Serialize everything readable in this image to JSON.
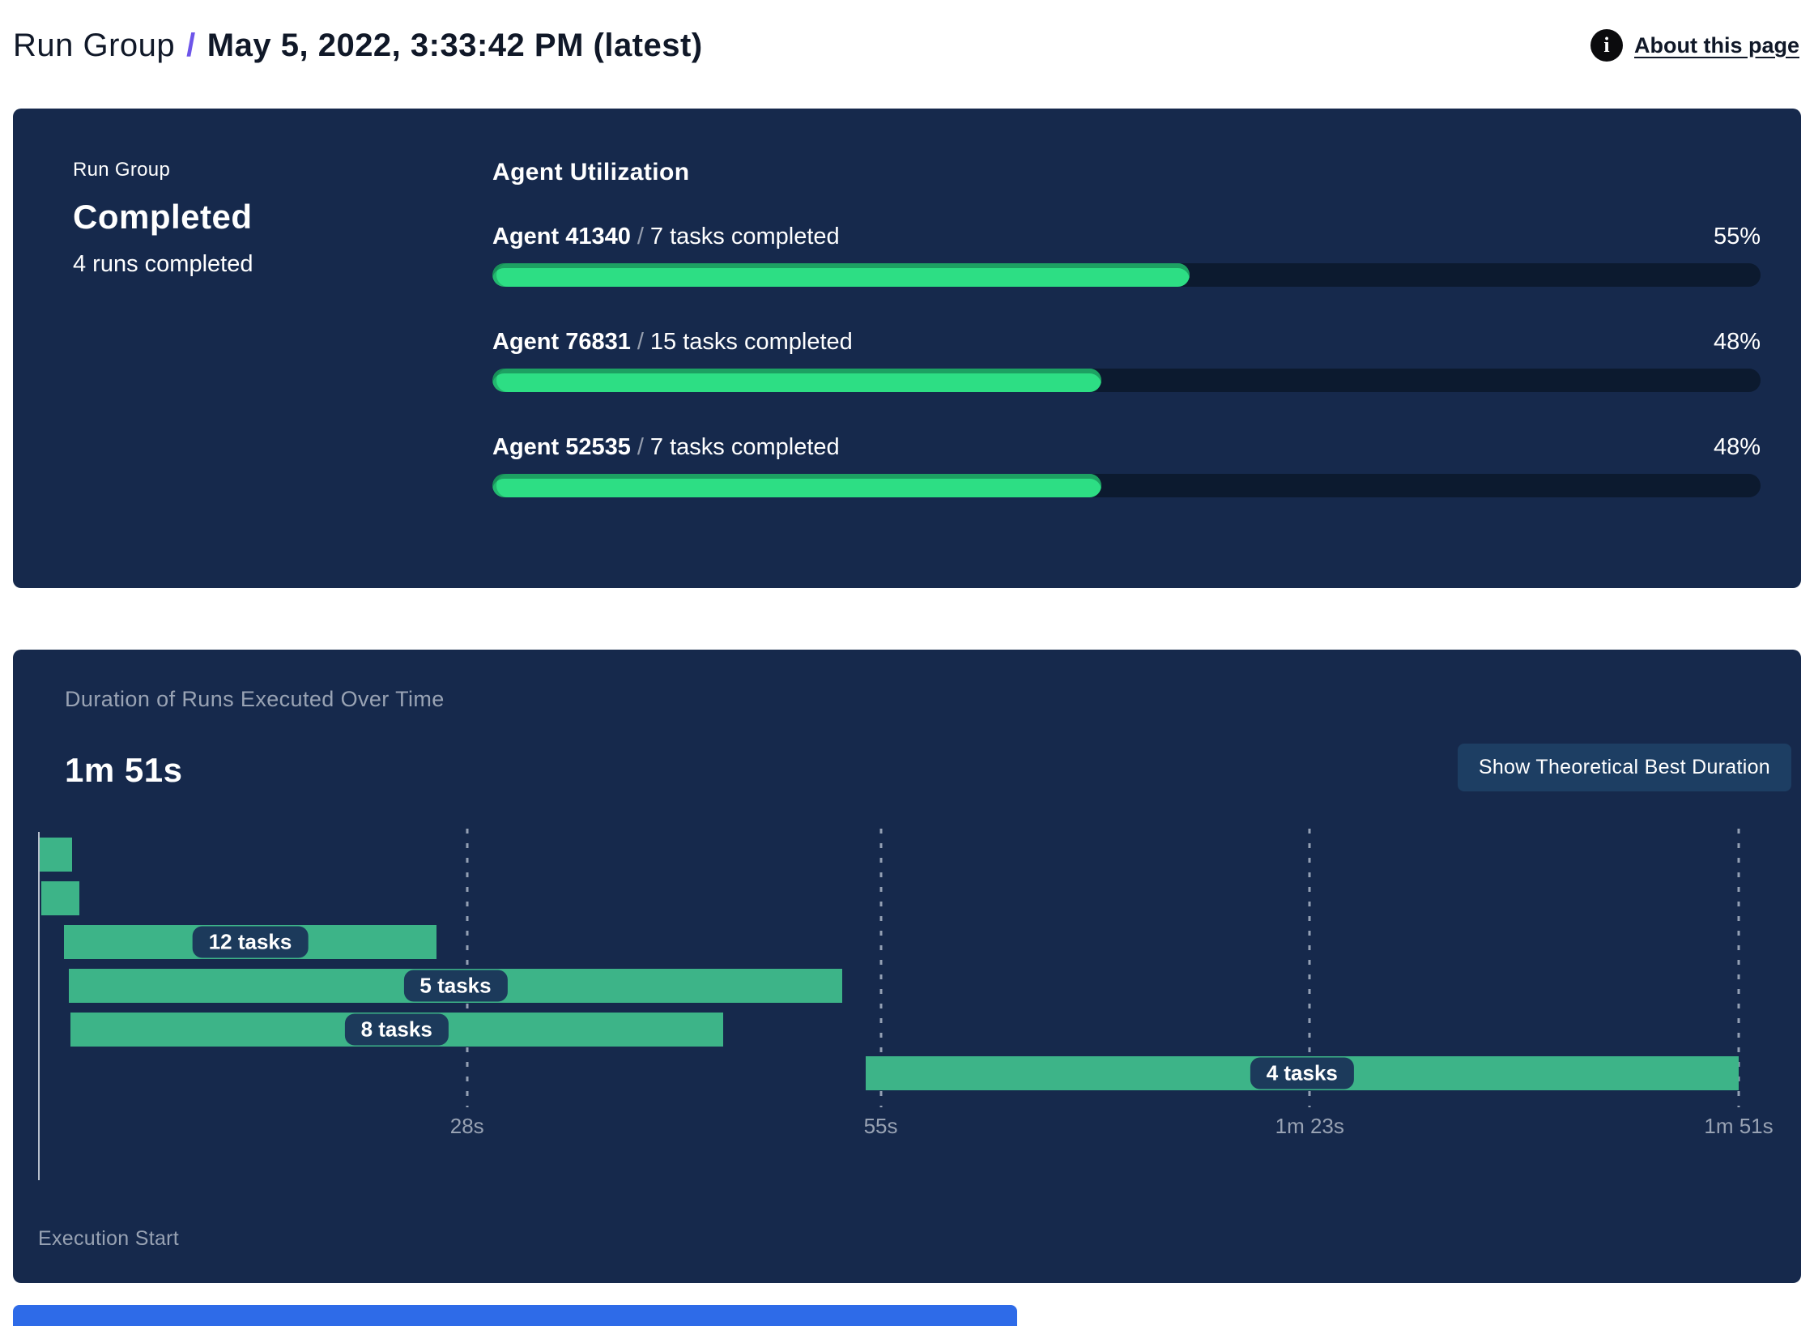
{
  "header": {
    "breadcrumb_root": "Run Group",
    "separator": "/",
    "title": "May 5, 2022, 3:33:42 PM (latest)",
    "info_glyph": "i",
    "about_label": "About this page"
  },
  "run_group_panel": {
    "label": "Run Group",
    "status": "Completed",
    "runs_summary": "4 runs completed",
    "section_title": "Agent Utilization",
    "agents": [
      {
        "name": "Agent 41340",
        "separator": "/",
        "tasks": "7 tasks completed",
        "percent": 55,
        "percent_label": "55%"
      },
      {
        "name": "Agent 76831",
        "separator": "/",
        "tasks": "15 tasks completed",
        "percent": 48,
        "percent_label": "48%"
      },
      {
        "name": "Agent 52535",
        "separator": "/",
        "tasks": "7 tasks completed",
        "percent": 48,
        "percent_label": "48%"
      }
    ]
  },
  "duration_panel": {
    "title": "Duration of Runs Executed Over Time",
    "total_duration": "1m 51s",
    "button_label": "Show Theoretical Best Duration",
    "execution_start_label": "Execution Start"
  },
  "chart_data": {
    "type": "gantt",
    "title": "Duration of Runs Executed Over Time",
    "total_duration_label": "1m 51s",
    "total_duration_seconds": 111,
    "xlabel": "Execution Start",
    "x_ticks": [
      {
        "seconds": 28,
        "label": "28s"
      },
      {
        "seconds": 55,
        "label": "55s"
      },
      {
        "seconds": 83,
        "label": "1m 23s"
      },
      {
        "seconds": 111,
        "label": "1m 51s"
      }
    ],
    "bars": [
      {
        "start_s": 0.1,
        "end_s": 2.2,
        "label": ""
      },
      {
        "start_s": 0.2,
        "end_s": 2.7,
        "label": ""
      },
      {
        "start_s": 1.7,
        "end_s": 26.0,
        "label": "12 tasks"
      },
      {
        "start_s": 2.0,
        "end_s": 52.5,
        "label": "5 tasks"
      },
      {
        "start_s": 2.1,
        "end_s": 44.7,
        "label": "8 tasks"
      },
      {
        "start_s": 54.0,
        "end_s": 111.0,
        "label": "4 tasks"
      }
    ],
    "bar_color": "#3db488",
    "colors": {
      "panel_background": "#16294c",
      "progress_fill": "#2dde84",
      "progress_track": "#0c1a2f",
      "pill_background": "#1c3a5b",
      "muted_text": "#98a2b3",
      "accent_purple": "#6d55e9"
    },
    "legend": "none",
    "grid": "dashed-vertical"
  }
}
